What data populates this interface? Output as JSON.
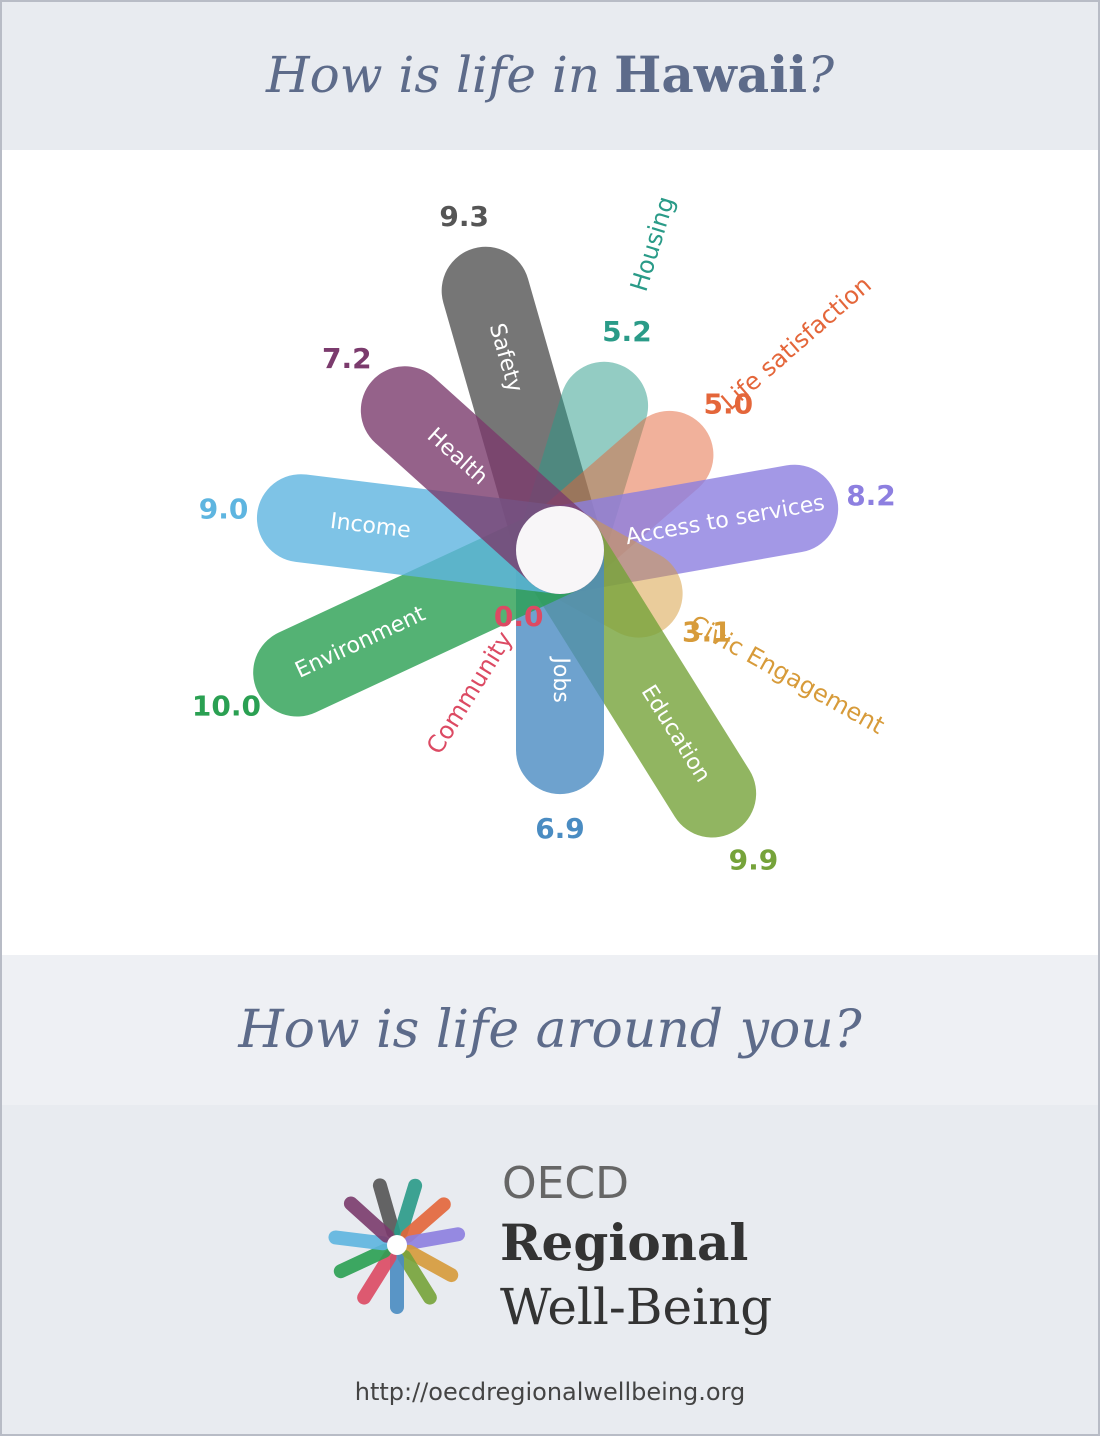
{
  "header": {
    "title_parts": [
      "How is life in",
      "Hawaii",
      "?"
    ]
  },
  "chart_data": {
    "type": "radial-bar",
    "categories": [
      "Safety",
      "Housing",
      "Life satisfaction",
      "Access to services",
      "Civic Engagement",
      "Education",
      "Jobs",
      "Community",
      "Environment",
      "Income",
      "Health"
    ],
    "values": [
      9.3,
      5.2,
      5.0,
      8.2,
      3.1,
      9.9,
      6.9,
      0.0,
      10.0,
      9.0,
      7.2
    ],
    "value_labels": [
      "9.3",
      "5.2",
      "5.0",
      "8.2",
      "3.1",
      "9.9",
      "6.9",
      "0.0",
      "10.0",
      "9.0",
      "7.2"
    ],
    "colors": [
      "#555555",
      "#2a9b88",
      "#e4663a",
      "#8d7fe0",
      "#d79b3a",
      "#76a33a",
      "#4a8cc2",
      "#dc4a63",
      "#2aa052",
      "#5eb5e0",
      "#7b3b6d"
    ]
  },
  "footer": {
    "question": "How is life around you?",
    "logo": [
      "OECD",
      "Regional",
      "Well-Being"
    ],
    "url": "http://oecdregionalwellbeing.org"
  }
}
